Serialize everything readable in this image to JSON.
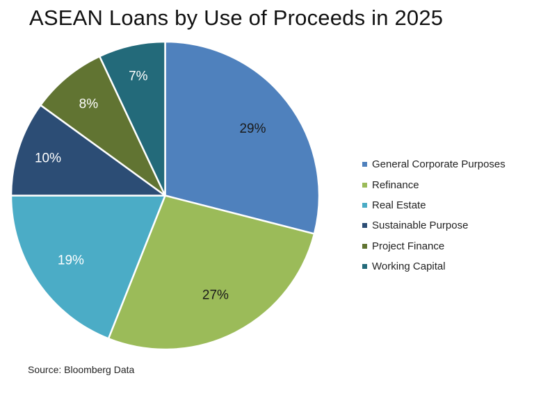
{
  "chart_data": {
    "type": "pie",
    "title": "ASEAN Loans by Use of Proceeds in 2025",
    "categories": [
      "General Corporate Purposes",
      "Refinance",
      "Real Estate",
      "Sustainable Purpose",
      "Project Finance",
      "Working Capital"
    ],
    "values": [
      29,
      27,
      19,
      10,
      8,
      7
    ],
    "labels": [
      "29%",
      "27%",
      "19%",
      "10%",
      "8%",
      "7%"
    ],
    "colors": [
      "#4f81bd",
      "#9bbb59",
      "#4bacc6",
      "#2c4d75",
      "#617432",
      "#236a7a"
    ],
    "label_colors": [
      "#1a1a1a",
      "#1a1a1a",
      "#ffffff",
      "#ffffff",
      "#ffffff",
      "#ffffff"
    ],
    "start_angle": "12 o'clock, clockwise",
    "legend_position": "right",
    "source": "Source: Bloomberg Data"
  },
  "title": "ASEAN Loans by Use of Proceeds in 2025",
  "legend": [
    {
      "label": "General Corporate Purposes",
      "color": "#4f81bd"
    },
    {
      "label": "Refinance",
      "color": "#9bbb59"
    },
    {
      "label": "Real Estate",
      "color": "#4bacc6"
    },
    {
      "label": "Sustainable Purpose",
      "color": "#2c4d75"
    },
    {
      "label": "Project Finance",
      "color": "#617432"
    },
    {
      "label": "Working Capital",
      "color": "#236a7a"
    }
  ],
  "source": "Source: Bloomberg Data"
}
